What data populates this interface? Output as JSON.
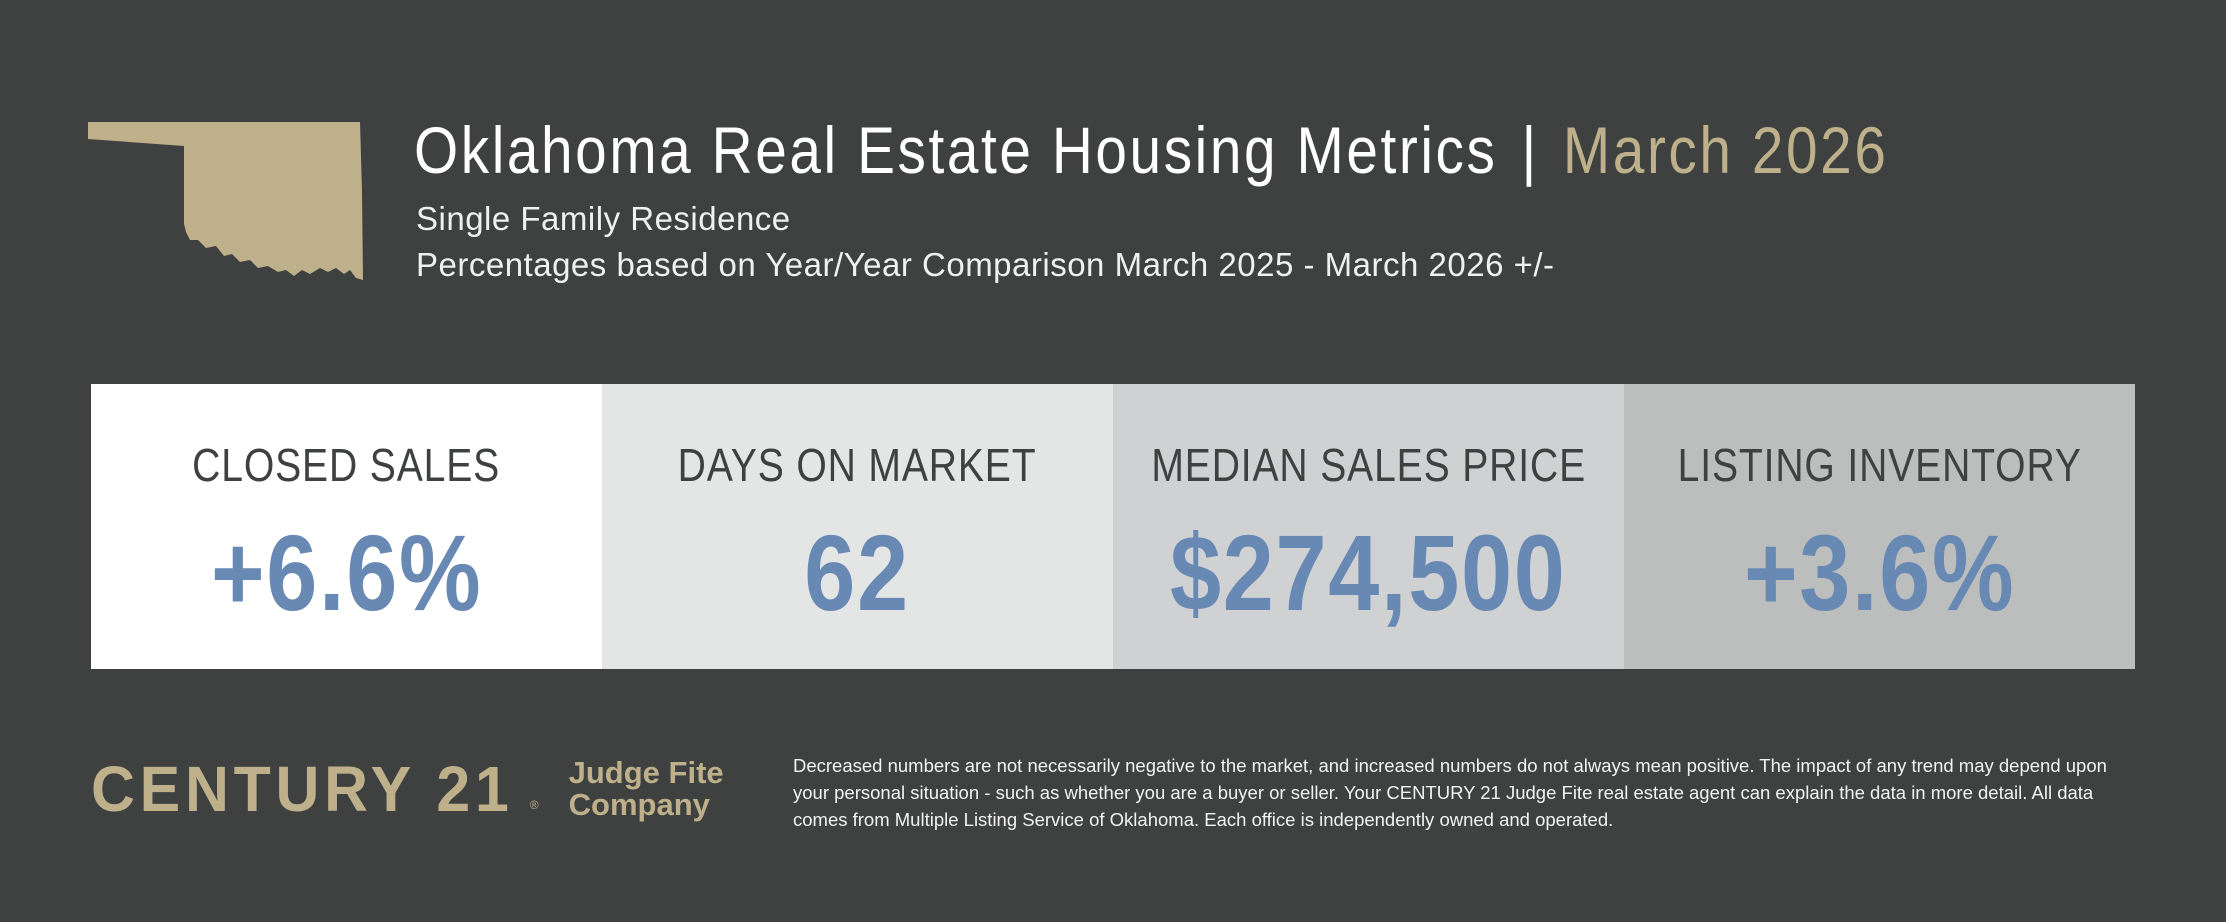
{
  "header": {
    "title": "Oklahoma Real Estate Housing Metrics",
    "separator": "|",
    "date": "March 2026",
    "subtitle": "Single Family Residence",
    "comparison_note": "Percentages based on Year/Year Comparison March 2025 - March 2026 +/-"
  },
  "metrics": [
    {
      "label": "CLOSED SALES",
      "value": "+6.6%",
      "bg": "#ffffff"
    },
    {
      "label": "DAYS ON MARKET",
      "value": "62",
      "bg": "#e4e5e5"
    },
    {
      "label": "MEDIAN SALES PRICE",
      "value": "$274,500",
      "bg": "#d0d1d2"
    },
    {
      "label": "LISTING INVENTORY",
      "value": "+3.6%",
      "bg": "#bcbdbd"
    }
  ],
  "footer": {
    "brand": "CENTURY 21",
    "brand_mark": "®",
    "office_line1": "Judge Fite",
    "office_line2": "Company",
    "disclaimer": "Decreased numbers are not necessarily negative to the market, and increased numbers do not always mean positive. The impact of any trend may depend upon your personal situation - such as whether you are a buyer or seller. Your CENTURY 21 Judge Fite real estate agent can explain the data in more detail. All data comes from Multiple Listing Service of Oklahoma. Each office is independently owned and operated."
  },
  "colors": {
    "background": "#3f4140",
    "gold": "#bdb08a",
    "value_blue": "#6889b3"
  },
  "icons": {
    "state_map": "oklahoma-map-icon"
  }
}
